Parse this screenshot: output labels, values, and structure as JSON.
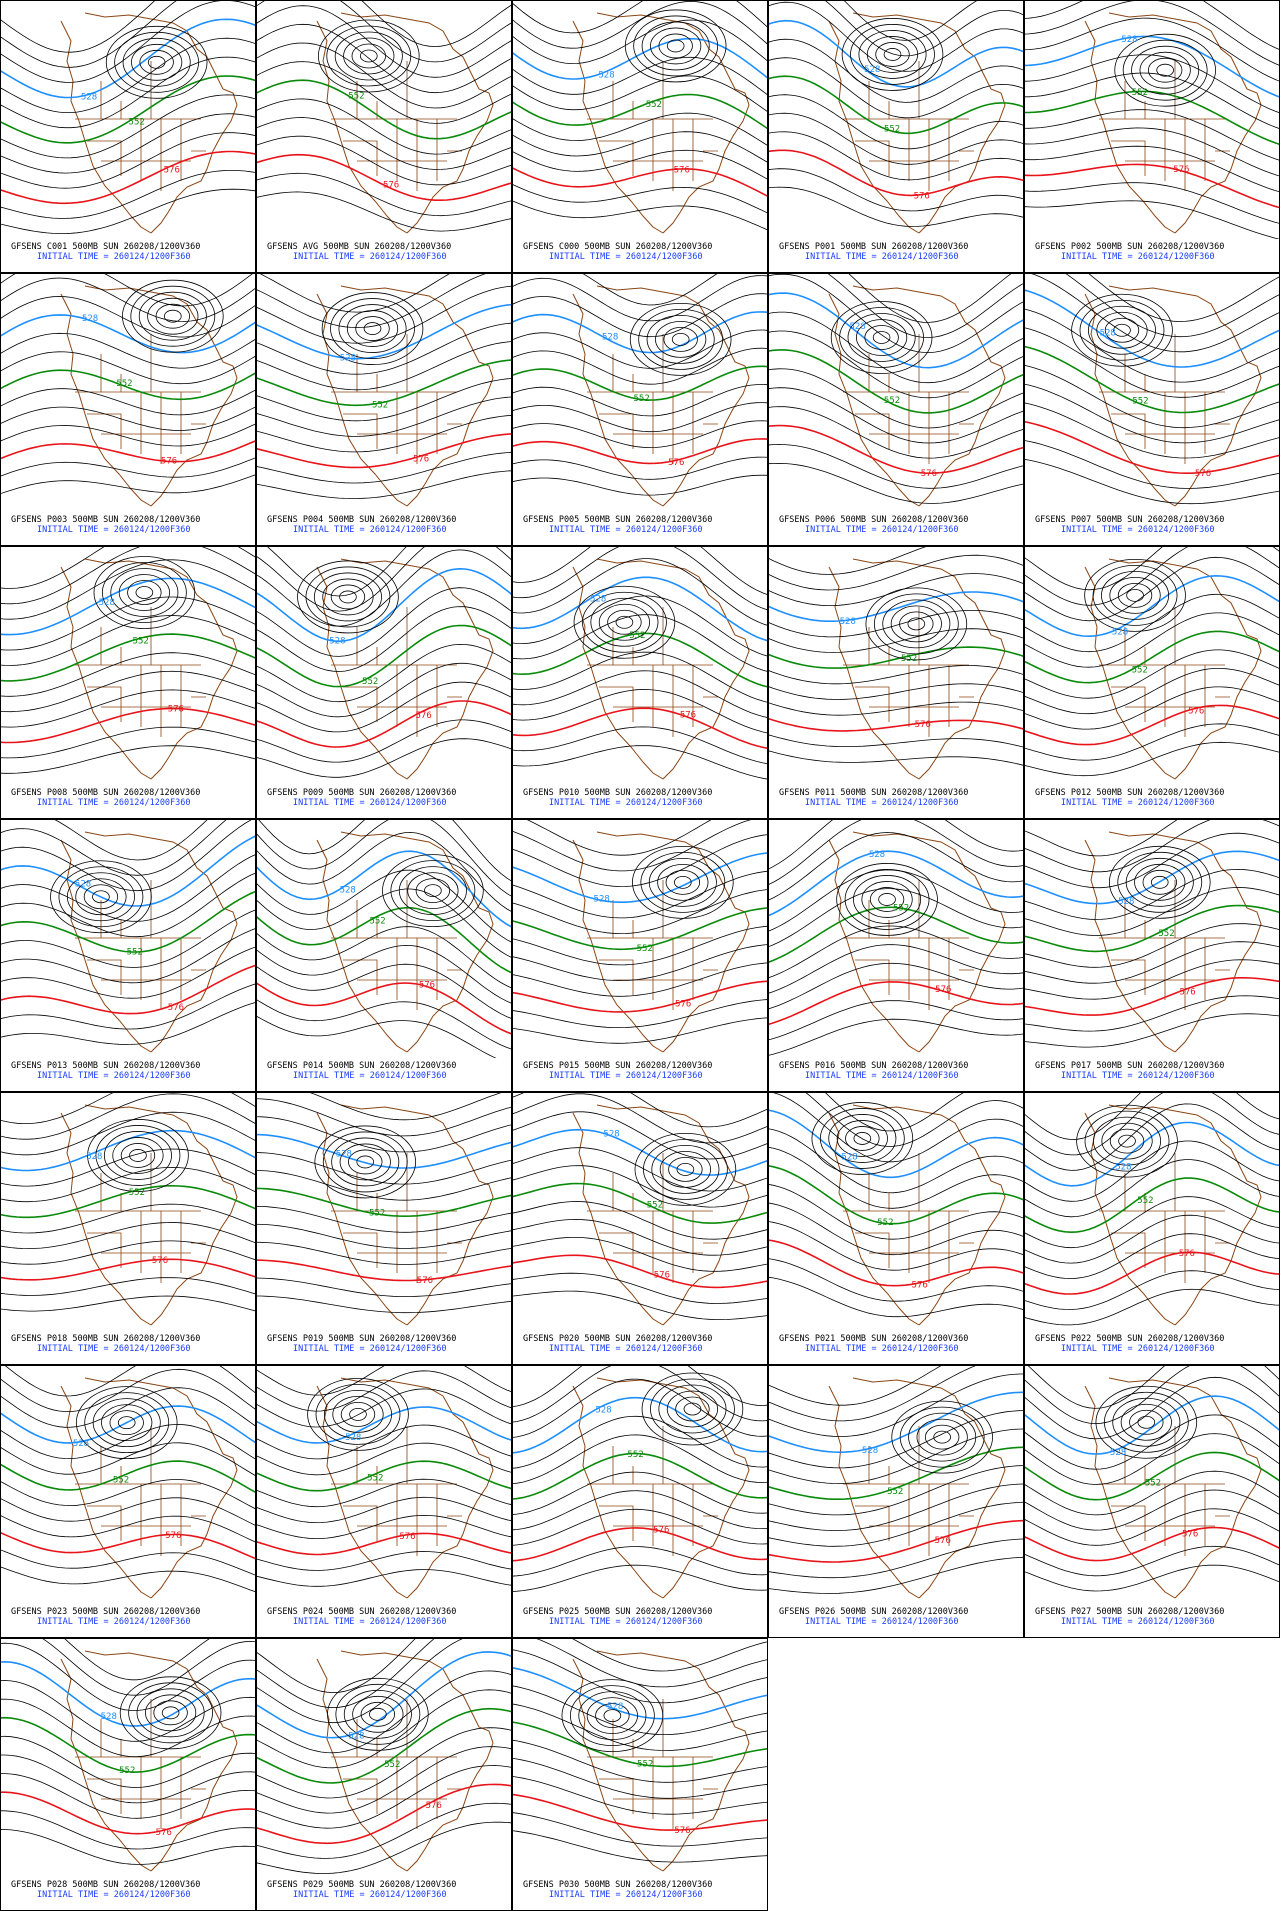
{
  "panels": [
    {
      "title": "GFSENS C001 500MB SUN 260208/1200V360",
      "initial_time": "INITIAL TIME = 260124/1200F360",
      "contour_labels": [
        "528",
        "552",
        "576"
      ]
    },
    {
      "title": "GFSENS AVG 500MB SUN 260208/1200V360",
      "initial_time": "INITIAL TIME = 260124/1200F360",
      "contour_labels": [
        "552",
        "576"
      ]
    },
    {
      "title": "GFSENS C000 500MB SUN 260208/1200V360",
      "initial_time": "INITIAL TIME = 260124/1200F360",
      "contour_labels": [
        "528",
        "552",
        "576"
      ]
    },
    {
      "title": "GFSENS P001 500MB SUN 260208/1200V360",
      "initial_time": "INITIAL TIME = 260124/1200F360",
      "contour_labels": [
        "528",
        "552",
        "576"
      ]
    },
    {
      "title": "GFSENS P002 500MB SUN 260208/1200V360",
      "initial_time": "INITIAL TIME = 260124/1200F360",
      "contour_labels": [
        "528",
        "552",
        "576"
      ]
    },
    {
      "title": "GFSENS P003 500MB SUN 260208/1200V360",
      "initial_time": "INITIAL TIME = 260124/1200F360",
      "contour_labels": [
        "528",
        "552",
        "576"
      ]
    },
    {
      "title": "GFSENS P004 500MB SUN 260208/1200V360",
      "initial_time": "INITIAL TIME = 260124/1200F360",
      "contour_labels": [
        "528",
        "552",
        "576"
      ]
    },
    {
      "title": "GFSENS P005 500MB SUN 260208/1200V360",
      "initial_time": "INITIAL TIME = 260124/1200F360",
      "contour_labels": [
        "528",
        "552",
        "576"
      ]
    },
    {
      "title": "GFSENS P006 500MB SUN 260208/1200V360",
      "initial_time": "INITIAL TIME = 260124/1200F360",
      "contour_labels": [
        "528",
        "552",
        "576"
      ]
    },
    {
      "title": "GFSENS P007 500MB SUN 260208/1200V360",
      "initial_time": "INITIAL TIME = 260124/1200F360",
      "contour_labels": [
        "528",
        "552",
        "576"
      ]
    },
    {
      "title": "GFSENS P008 500MB SUN 260208/1200V360",
      "initial_time": "INITIAL TIME = 260124/1200F360",
      "contour_labels": [
        "528",
        "552",
        "576"
      ]
    },
    {
      "title": "GFSENS P009 500MB SUN 260208/1200V360",
      "initial_time": "INITIAL TIME = 260124/1200F360",
      "contour_labels": [
        "528",
        "552",
        "576"
      ]
    },
    {
      "title": "GFSENS P010 500MB SUN 260208/1200V360",
      "initial_time": "INITIAL TIME = 260124/1200F360",
      "contour_labels": [
        "528",
        "552",
        "576"
      ]
    },
    {
      "title": "GFSENS P011 500MB SUN 260208/1200V360",
      "initial_time": "INITIAL TIME = 260124/1200F360",
      "contour_labels": [
        "528",
        "552",
        "576"
      ]
    },
    {
      "title": "GFSENS P012 500MB SUN 260208/1200V360",
      "initial_time": "INITIAL TIME = 260124/1200F360",
      "contour_labels": [
        "528",
        "552",
        "576"
      ]
    },
    {
      "title": "GFSENS P013 500MB SUN 260208/1200V360",
      "initial_time": "INITIAL TIME = 260124/1200F360",
      "contour_labels": [
        "528",
        "552",
        "576"
      ]
    },
    {
      "title": "GFSENS P014 500MB SUN 260208/1200V360",
      "initial_time": "INITIAL TIME = 260124/1200F360",
      "contour_labels": [
        "528",
        "552",
        "576"
      ]
    },
    {
      "title": "GFSENS P015 500MB SUN 260208/1200V360",
      "initial_time": "INITIAL TIME = 260124/1200F360",
      "contour_labels": [
        "528",
        "552",
        "576"
      ]
    },
    {
      "title": "GFSENS P016 500MB SUN 260208/1200V360",
      "initial_time": "INITIAL TIME = 260124/1200F360",
      "contour_labels": [
        "528",
        "552",
        "576"
      ]
    },
    {
      "title": "GFSENS P017 500MB SUN 260208/1200V360",
      "initial_time": "INITIAL TIME = 260124/1200F360",
      "contour_labels": [
        "528",
        "552",
        "576"
      ]
    },
    {
      "title": "GFSENS P018 500MB SUN 260208/1200V360",
      "initial_time": "INITIAL TIME = 260124/1200F360",
      "contour_labels": [
        "528",
        "552",
        "576"
      ]
    },
    {
      "title": "GFSENS P019 500MB SUN 260208/1200V360",
      "initial_time": "INITIAL TIME = 260124/1200F360",
      "contour_labels": [
        "528",
        "552",
        "576"
      ]
    },
    {
      "title": "GFSENS P020 500MB SUN 260208/1200V360",
      "initial_time": "INITIAL TIME = 260124/1200F360",
      "contour_labels": [
        "528",
        "552",
        "576"
      ]
    },
    {
      "title": "GFSENS P021 500MB SUN 260208/1200V360",
      "initial_time": "INITIAL TIME = 260124/1200F360",
      "contour_labels": [
        "528",
        "552",
        "576"
      ]
    },
    {
      "title": "GFSENS P022 500MB SUN 260208/1200V360",
      "initial_time": "INITIAL TIME = 260124/1200F360",
      "contour_labels": [
        "528",
        "552",
        "576"
      ]
    },
    {
      "title": "GFSENS P023 500MB SUN 260208/1200V360",
      "initial_time": "INITIAL TIME = 260124/1200F360",
      "contour_labels": [
        "528",
        "552",
        "576"
      ]
    },
    {
      "title": "GFSENS P024 500MB SUN 260208/1200V360",
      "initial_time": "INITIAL TIME = 260124/1200F360",
      "contour_labels": [
        "528",
        "552",
        "576"
      ]
    },
    {
      "title": "GFSENS P025 500MB SUN 260208/1200V360",
      "initial_time": "INITIAL TIME = 260124/1200F360",
      "contour_labels": [
        "528",
        "552",
        "576"
      ]
    },
    {
      "title": "GFSENS P026 500MB SUN 260208/1200V360",
      "initial_time": "INITIAL TIME = 260124/1200F360",
      "contour_labels": [
        "528",
        "552",
        "576"
      ]
    },
    {
      "title": "GFSENS P027 500MB SUN 260208/1200V360",
      "initial_time": "INITIAL TIME = 260124/1200F360",
      "contour_labels": [
        "528",
        "552",
        "576"
      ]
    },
    {
      "title": "GFSENS P028 500MB SUN 260208/1200V360",
      "initial_time": "INITIAL TIME = 260124/1200F360",
      "contour_labels": [
        "528",
        "552",
        "576"
      ]
    },
    {
      "title": "GFSENS P029 500MB SUN 260208/1200V360",
      "initial_time": "INITIAL TIME = 260124/1200F360",
      "contour_labels": [
        "528",
        "552",
        "576"
      ]
    },
    {
      "title": "GFSENS P030 500MB SUN 260208/1200V360",
      "initial_time": "INITIAL TIME = 260124/1200F360",
      "contour_labels": [
        "528",
        "552",
        "576"
      ]
    }
  ]
}
